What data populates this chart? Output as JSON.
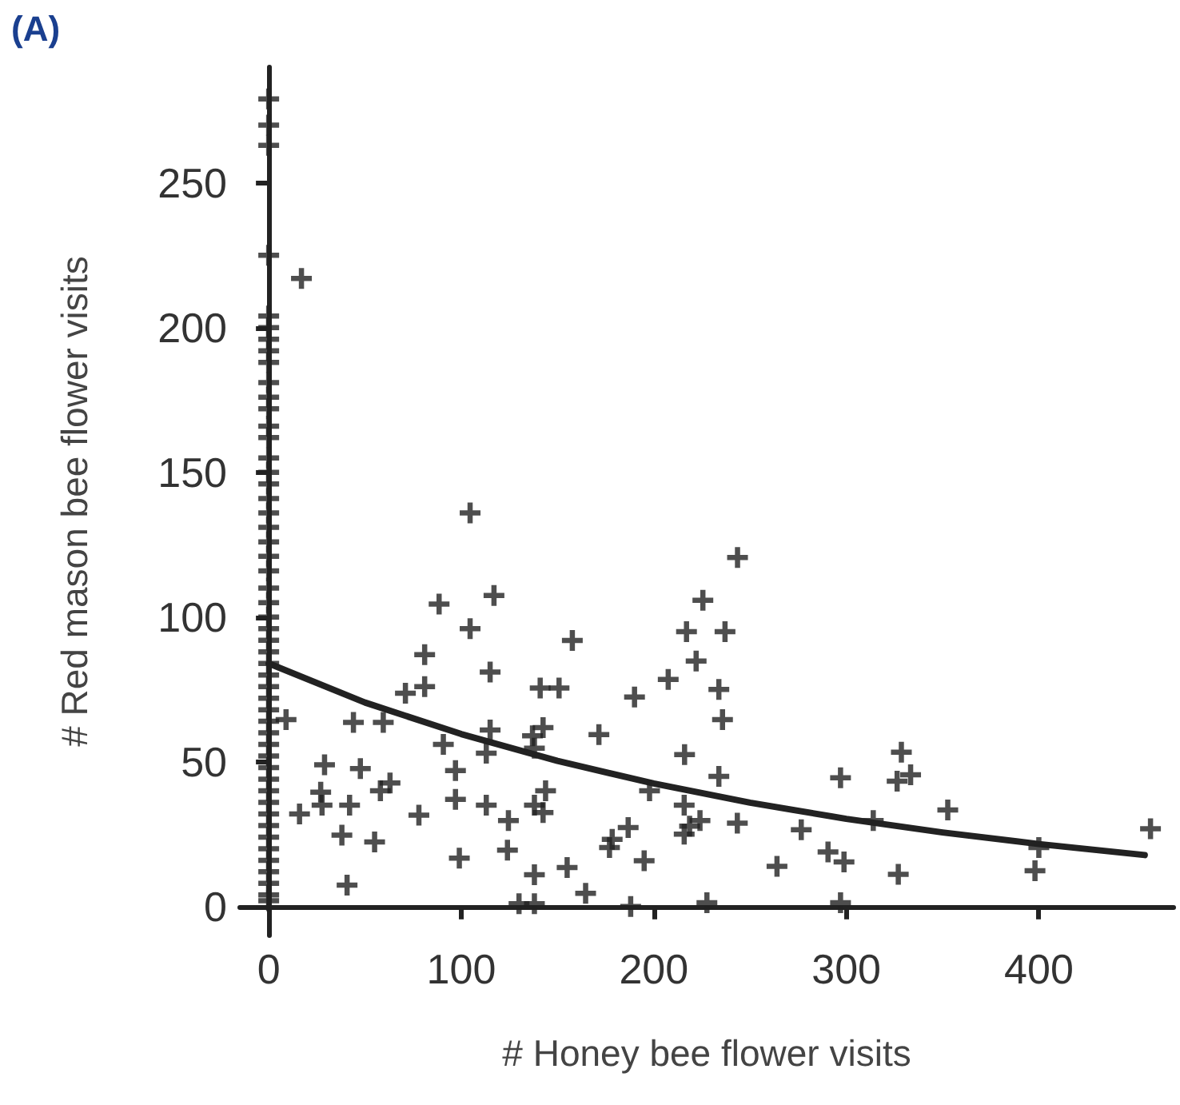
{
  "chart_data": {
    "type": "scatter",
    "title": "(A)",
    "xlabel": "# Honey bee flower visits",
    "ylabel": "# Red mason bee flower visits",
    "xlim": [
      -15,
      470
    ],
    "ylim": [
      -10,
      290
    ],
    "xticks": [
      0,
      100,
      200,
      300,
      400
    ],
    "yticks": [
      0,
      50,
      100,
      150,
      200,
      250
    ],
    "grid": false,
    "marker": "cross",
    "series": [
      {
        "color": "#222222",
        "x": [
          0,
          0,
          0,
          0,
          0,
          0,
          0,
          0,
          0,
          0,
          0,
          0,
          0,
          0,
          0,
          0,
          0,
          0,
          0,
          0,
          0,
          0,
          0,
          0,
          0,
          0,
          0,
          0,
          0,
          0,
          0,
          0,
          0,
          0,
          0,
          0,
          0,
          0,
          0,
          0,
          0,
          0,
          0,
          0,
          0,
          0,
          0,
          0,
          0,
          0,
          0,
          17,
          104.6,
          88.5,
          117,
          104.6,
          81,
          115,
          81,
          71,
          141,
          9,
          44,
          59.5,
          90.7,
          115,
          113,
          137,
          29,
          47.6,
          97,
          63,
          58,
          27,
          27.7,
          42,
          16,
          78,
          97,
          113,
          124.5,
          138,
          38,
          55,
          99,
          124,
          138,
          40.7,
          130,
          138,
          243.5,
          225.5,
          157.7,
          217,
          237,
          222,
          150.8,
          190,
          207.5,
          233.8,
          235.7,
          142.5,
          171.5,
          138,
          216,
          233.8,
          297,
          328.6,
          326.4,
          333.4,
          197.8,
          215.8,
          143.8,
          142.5,
          224,
          218.6,
          215.8,
          243.4,
          186.7,
          178.4,
          177,
          276.6,
          314,
          352.7,
          195,
          155,
          290.5,
          298.8,
          264,
          327,
          398,
          400,
          458,
          164.6,
          188,
          227.6,
          297
        ],
        "values": [
          279,
          270,
          263,
          225,
          204,
          200,
          196,
          192,
          188,
          181,
          176,
          172,
          166,
          162,
          155,
          150,
          146,
          141,
          136,
          131,
          126,
          121,
          116,
          110,
          105,
          100,
          96,
          92,
          88,
          84,
          80,
          76,
          72,
          68,
          64,
          60,
          56,
          52,
          48,
          44,
          40,
          36,
          32,
          28,
          24,
          20,
          16,
          12,
          8,
          4,
          2,
          217,
          136,
          104.5,
          107.5,
          96,
          87,
          81,
          76,
          73.7,
          75.5,
          64.6,
          63.6,
          63.6,
          56,
          61,
          53,
          59,
          49,
          47.7,
          47,
          42.7,
          40,
          39.5,
          35,
          35,
          32,
          31.6,
          37,
          35,
          29.7,
          35,
          24.7,
          22.3,
          16.7,
          19.5,
          11,
          7.4,
          1,
          1,
          120.6,
          105.8,
          91.9,
          95,
          95,
          84.8,
          75.5,
          72.4,
          78.5,
          75,
          64.6,
          61.8,
          59.4,
          54.7,
          52.5,
          45,
          44.5,
          53.3,
          43.3,
          45.5,
          40,
          35,
          40,
          32.5,
          29.7,
          27.8,
          25,
          28.8,
          27.3,
          23.2,
          20.4,
          26.5,
          29.7,
          33.4,
          15.8,
          13.5,
          18.9,
          15.4,
          13.9,
          11.1,
          12.4,
          20.4,
          26.9,
          4.6,
          0,
          1.3,
          1.3
        ]
      },
      {
        "type": "line",
        "color": "#222222",
        "marker": "none",
        "line_style": "solid",
        "x": [
          0,
          50,
          100,
          150,
          200,
          250,
          300,
          350,
          400,
          455
        ],
        "values": [
          84,
          70.5,
          59.6,
          50.3,
          42.5,
          35.9,
          30.3,
          25.6,
          21.6,
          17.8
        ]
      }
    ]
  }
}
